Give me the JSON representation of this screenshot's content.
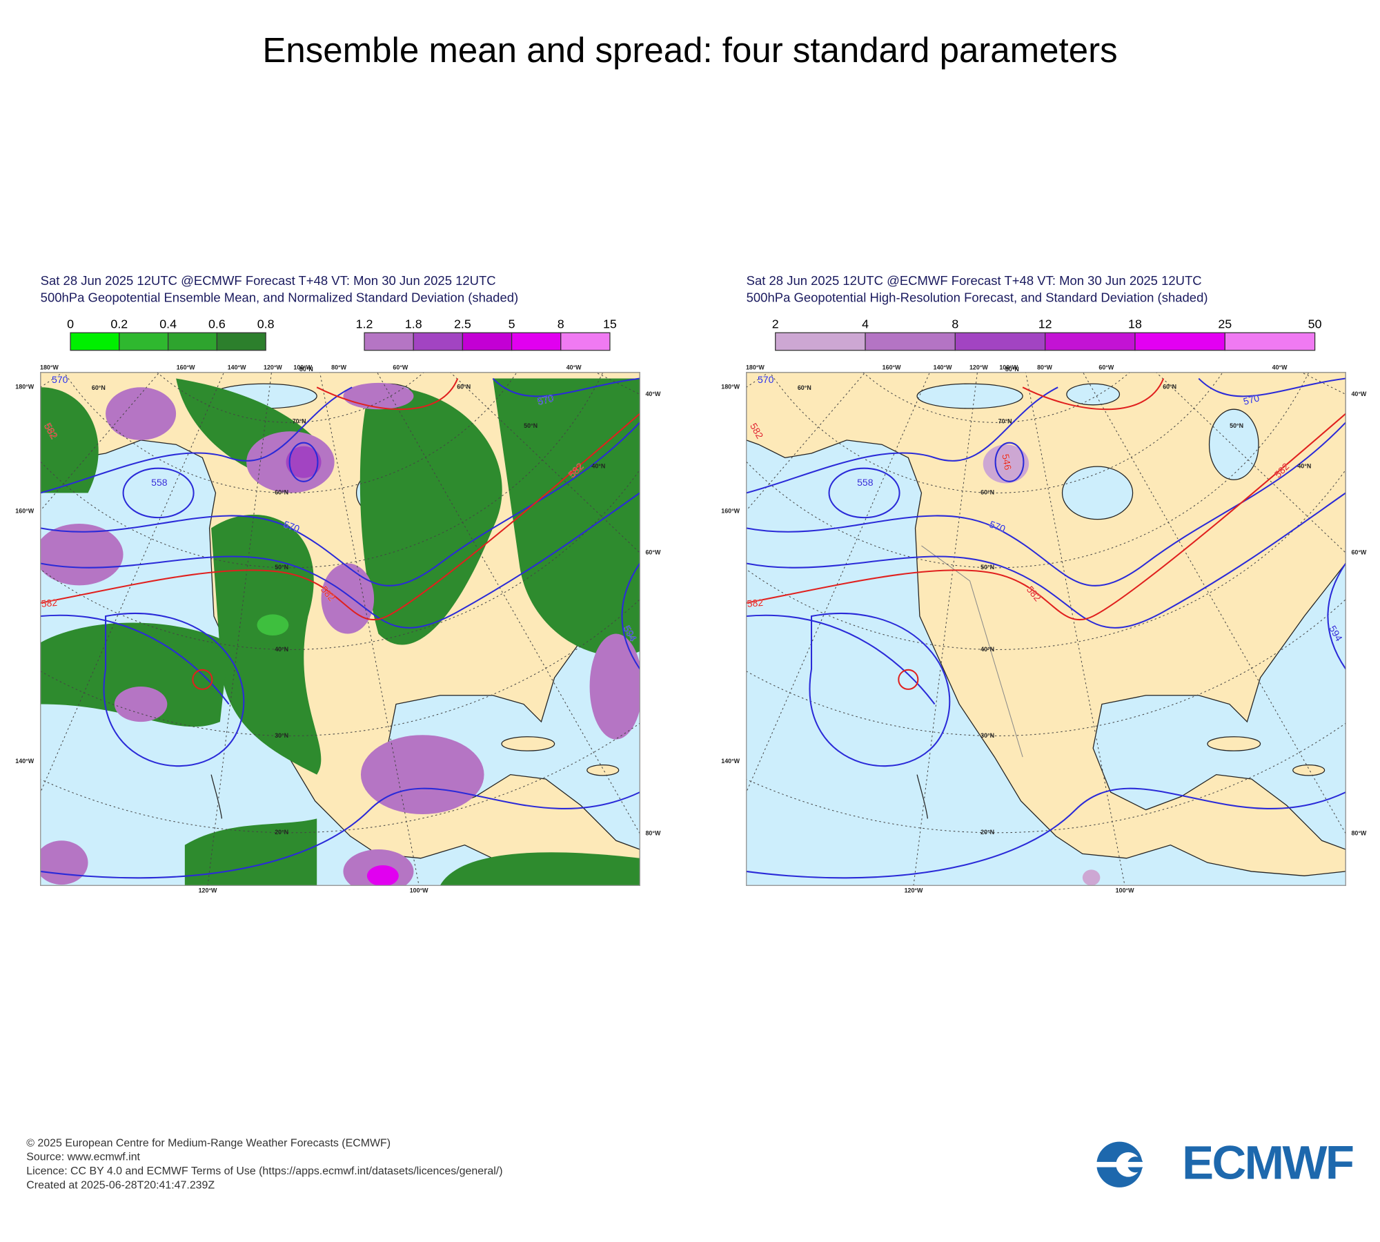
{
  "title": "Ensemble mean and spread: four standard parameters",
  "panels": [
    {
      "header": [
        "Sat 28 Jun 2025 12UTC @ECMWF Forecast T+48 VT: Mon 30 Jun 2025 12UTC",
        "500hPa Geopotential Ensemble Mean, and Normalized Standard Deviation (shaded)"
      ],
      "colorbars": [
        {
          "labels": [
            "0",
            "0.2",
            "0.4",
            "0.6",
            "0.8"
          ],
          "colors": [
            "#00f000",
            "#2fb82f",
            "#2ea42e",
            "#2c7f2c"
          ]
        },
        {
          "labels": [
            "1.2",
            "1.8",
            "2.5",
            "5",
            "8",
            "15"
          ],
          "colors": [
            "#b575c4",
            "#a244c2",
            "#c300d4",
            "#e100f0",
            "#f07af2"
          ]
        }
      ],
      "map": {
        "top_labels": [
          "180°W",
          "160°W",
          "140°W",
          "120°W",
          "100°W",
          "80°W",
          "60°W",
          "40°W"
        ],
        "left_labels": [
          "180°W",
          "160°W",
          "140°W"
        ],
        "right_labels": [
          "40°W",
          "60°W",
          "80°W"
        ],
        "bottom_labels": [
          "120°W",
          "100°W"
        ],
        "lat_labels": [
          "60°N",
          "80°N",
          "70°N",
          "60°N",
          "50°N",
          "40°N",
          "30°N",
          "20°N",
          "60°N",
          "50°N",
          "40°N"
        ],
        "contour_labels": [
          {
            "text": "570",
            "color": "#2a2ad8"
          },
          {
            "text": "582",
            "color": "#e0201e"
          },
          {
            "text": "558",
            "color": "#2a2ad8"
          },
          {
            "text": "570",
            "color": "#2a2ad8"
          },
          {
            "text": "582",
            "color": "#e0201e"
          },
          {
            "text": "582",
            "color": "#e0201e"
          },
          {
            "text": "582",
            "color": "#e0201e"
          },
          {
            "text": "570",
            "color": "#2a2ad8"
          },
          {
            "text": "594",
            "color": "#2a2ad8"
          }
        ]
      }
    },
    {
      "header": [
        "Sat 28 Jun 2025 12UTC @ECMWF Forecast T+48 VT: Mon 30 Jun 2025 12UTC",
        "500hPa Geopotential High-Resolution Forecast, and Standard Deviation (shaded)"
      ],
      "colorbars": [
        {
          "labels": [
            "2",
            "4",
            "8",
            "12",
            "18",
            "25",
            "50"
          ],
          "colors": [
            "#cda7d3",
            "#b474c4",
            "#a244c2",
            "#c313d4",
            "#e300f2",
            "#f07af2"
          ]
        }
      ],
      "map": {
        "top_labels": [
          "180°W",
          "160°W",
          "140°W",
          "120°W",
          "100°W",
          "80°W",
          "60°W",
          "40°W"
        ],
        "left_labels": [
          "180°W",
          "160°W",
          "140°W"
        ],
        "right_labels": [
          "40°W",
          "60°W",
          "80°W"
        ],
        "bottom_labels": [
          "120°W",
          "100°W"
        ],
        "lat_labels": [
          "60°N",
          "80°N",
          "70°N",
          "60°N",
          "50°N",
          "40°N",
          "30°N",
          "20°N",
          "60°N",
          "50°N",
          "40°N"
        ],
        "contour_labels": [
          {
            "text": "570",
            "color": "#2a2ad8"
          },
          {
            "text": "582",
            "color": "#e0201e"
          },
          {
            "text": "558",
            "color": "#2a2ad8"
          },
          {
            "text": "570",
            "color": "#2a2ad8"
          },
          {
            "text": "582",
            "color": "#e0201e"
          },
          {
            "text": "582",
            "color": "#e0201e"
          },
          {
            "text": "582",
            "color": "#e0201e"
          },
          {
            "text": "570",
            "color": "#2a2ad8"
          },
          {
            "text": "594",
            "color": "#2a2ad8"
          },
          {
            "text": "546",
            "color": "#e0201e"
          }
        ]
      }
    }
  ],
  "footer": [
    "© 2025 European Centre for Medium-Range Weather Forecasts (ECMWF)",
    "Source: www.ecmwf.int",
    "Licence: CC BY 4.0 and ECMWF Terms of Use (https://apps.ecmwf.int/datasets/licences/general/)",
    "Created at 2025-06-28T20:41:47.239Z"
  ],
  "logo": "ECMWF"
}
